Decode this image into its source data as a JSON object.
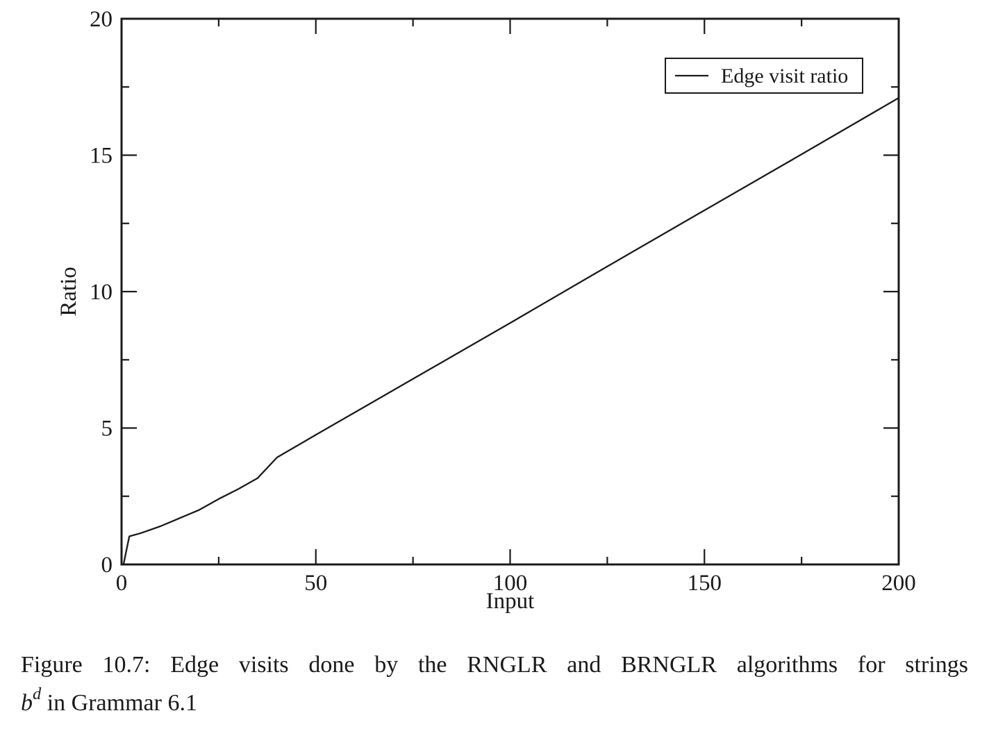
{
  "colors": {
    "ink": "#1a1a1a",
    "background": "#ffffff"
  },
  "chart_data": {
    "type": "line",
    "title": "",
    "xlabel": "Input",
    "ylabel": "Ratio",
    "xlim": [
      0,
      200
    ],
    "ylim": [
      0,
      20
    ],
    "grid": false,
    "x_major_ticks": [
      0,
      50,
      100,
      150,
      200
    ],
    "x_tick_labels": [
      "0",
      "50",
      "100",
      "150",
      "200"
    ],
    "x_minor_ticks": [
      25,
      75,
      125,
      175
    ],
    "y_major_ticks": [
      0,
      5,
      10,
      15,
      20
    ],
    "y_tick_labels": [
      "0",
      "5",
      "10",
      "15",
      "20"
    ],
    "y_minor_ticks": [
      2.5,
      7.5,
      12.5,
      17.5
    ],
    "legend": {
      "label": "Edge visit ratio",
      "position": "top-right-inside"
    },
    "series": [
      {
        "name": "Edge visit ratio",
        "color": "#1a1a1a",
        "x": [
          0.5,
          2,
          5,
          10,
          15,
          20,
          25,
          30,
          35,
          40,
          50,
          60,
          75,
          100,
          125,
          150,
          175,
          200
        ],
        "y": [
          0,
          1.03,
          1.15,
          1.4,
          1.7,
          2.0,
          2.4,
          2.76,
          3.16,
          3.92,
          4.75,
          5.57,
          6.8,
          8.85,
          10.92,
          12.98,
          15.03,
          17.1
        ]
      }
    ]
  },
  "caption": {
    "line1": "Figure 10.7:  Edge visits done by the RNGLR and BRNGLR algorithms for strings",
    "math_base": "b",
    "math_exponent": "d",
    "line2_rest": " in Grammar 6.1"
  }
}
